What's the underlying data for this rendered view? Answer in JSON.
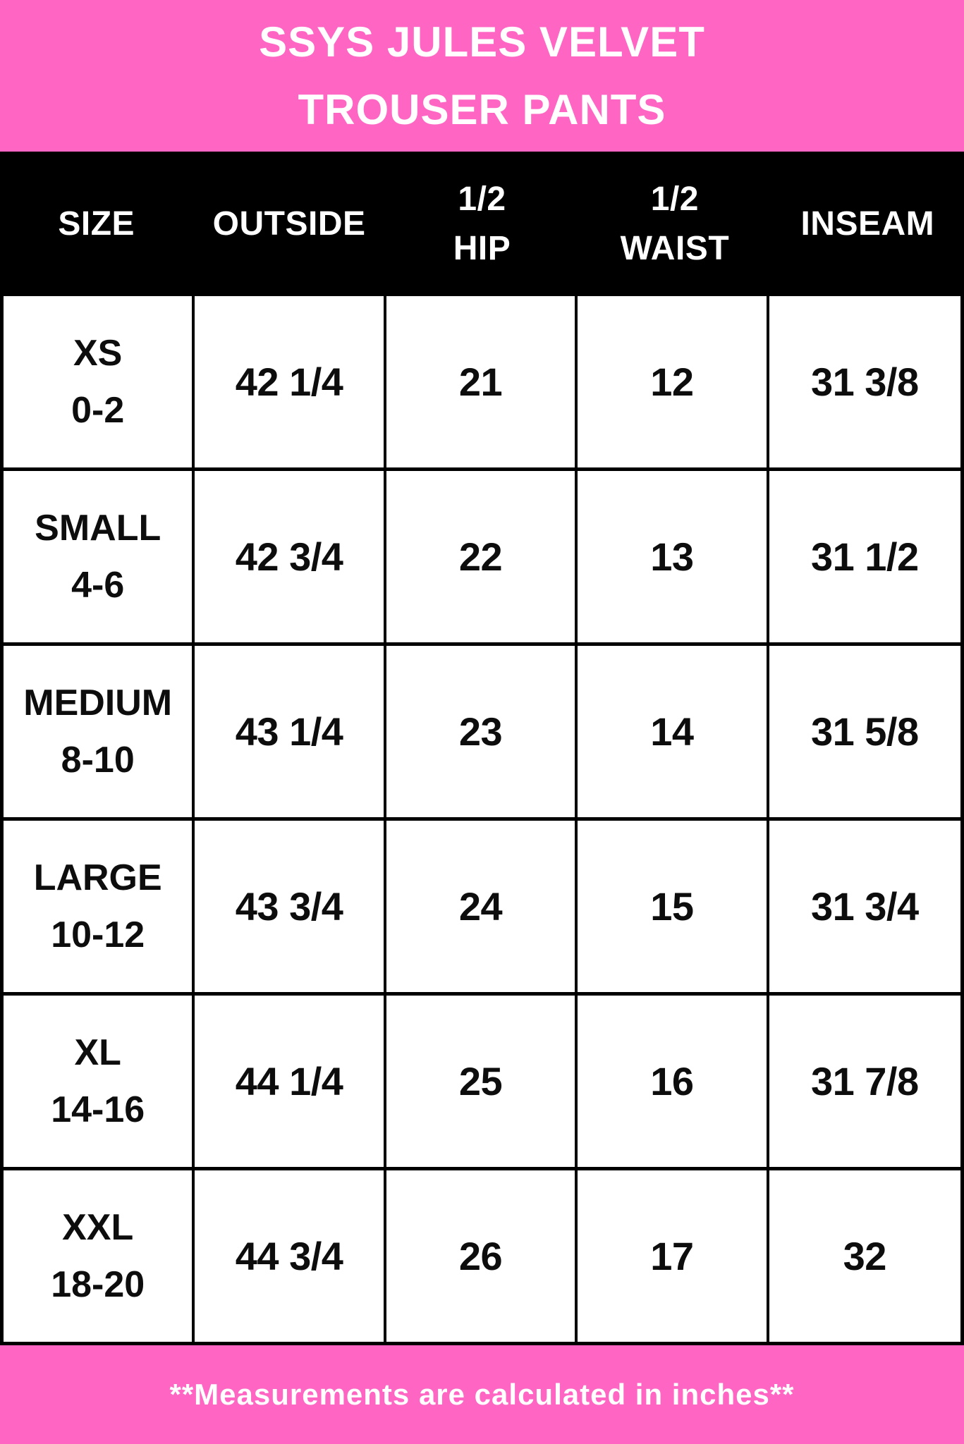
{
  "title": {
    "line1": "SSYS JULES VELVET",
    "line2": "TROUSER PANTS"
  },
  "table": {
    "headers": {
      "size": "SIZE",
      "outside": "OUTSIDE",
      "half_hip": "1/2\nHIP",
      "half_waist": "1/2\nWAIST",
      "inseam": "INSEAM"
    },
    "rows": [
      {
        "size": "XS",
        "range": "0-2",
        "outside": "42 1/4",
        "half_hip": "21",
        "half_waist": "12",
        "inseam": "31 3/8"
      },
      {
        "size": "SMALL",
        "range": "4-6",
        "outside": "42 3/4",
        "half_hip": "22",
        "half_waist": "13",
        "inseam": "31 1/2"
      },
      {
        "size": "MEDIUM",
        "range": "8-10",
        "outside": "43 1/4",
        "half_hip": "23",
        "half_waist": "14",
        "inseam": "31 5/8"
      },
      {
        "size": "LARGE",
        "range": "10-12",
        "outside": "43 3/4",
        "half_hip": "24",
        "half_waist": "15",
        "inseam": "31 3/4"
      },
      {
        "size": "XL",
        "range": "14-16",
        "outside": "44 1/4",
        "half_hip": "25",
        "half_waist": "16",
        "inseam": "31 7/8"
      },
      {
        "size": "XXL",
        "range": "18-20",
        "outside": "44 3/4",
        "half_hip": "26",
        "half_waist": "17",
        "inseam": "32"
      }
    ]
  },
  "footer": {
    "note": "**Measurements are calculated in inches**"
  },
  "colors": {
    "pink": "#FF66C4",
    "black": "#000000",
    "white": "#FFFFFF"
  },
  "chart_data": {
    "type": "table",
    "title": "SSYS JULES VELVET TROUSER PANTS",
    "columns": [
      "SIZE",
      "OUTSIDE",
      "1/2 HIP",
      "1/2 WAIST",
      "INSEAM"
    ],
    "rows": [
      [
        "XS 0-2",
        "42 1/4",
        "21",
        "12",
        "31 3/8"
      ],
      [
        "SMALL 4-6",
        "42 3/4",
        "22",
        "13",
        "31 1/2"
      ],
      [
        "MEDIUM 8-10",
        "43 1/4",
        "23",
        "14",
        "31 5/8"
      ],
      [
        "LARGE 10-12",
        "43 3/4",
        "24",
        "15",
        "31 3/4"
      ],
      [
        "XL 14-16",
        "44 1/4",
        "25",
        "16",
        "31 7/8"
      ],
      [
        "XXL 18-20",
        "44 3/4",
        "26",
        "17",
        "32"
      ]
    ],
    "units": "inches",
    "note": "**Measurements are calculated in inches**",
    "layout": {
      "header_background": "#000000",
      "band_background": "#FF66C4",
      "grid": true
    }
  }
}
